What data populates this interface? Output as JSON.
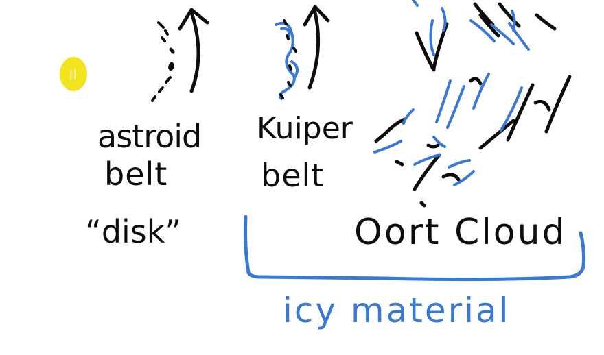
{
  "colors": {
    "ink_black": "#0d0d0d",
    "ink_blue": "#3a78d6",
    "cursor_yellow": "#f2e41c",
    "background": "#ffffff"
  },
  "labels": {
    "asteroid_line1": "astroid",
    "asteroid_line2": "belt",
    "disk": "“disk”",
    "kuiper_line1": "Kuiper",
    "kuiper_line2": "belt",
    "oort": "Oort Cloud",
    "icy": "icy material"
  },
  "icons": {
    "pointer": "yellow-pointer-dot"
  }
}
